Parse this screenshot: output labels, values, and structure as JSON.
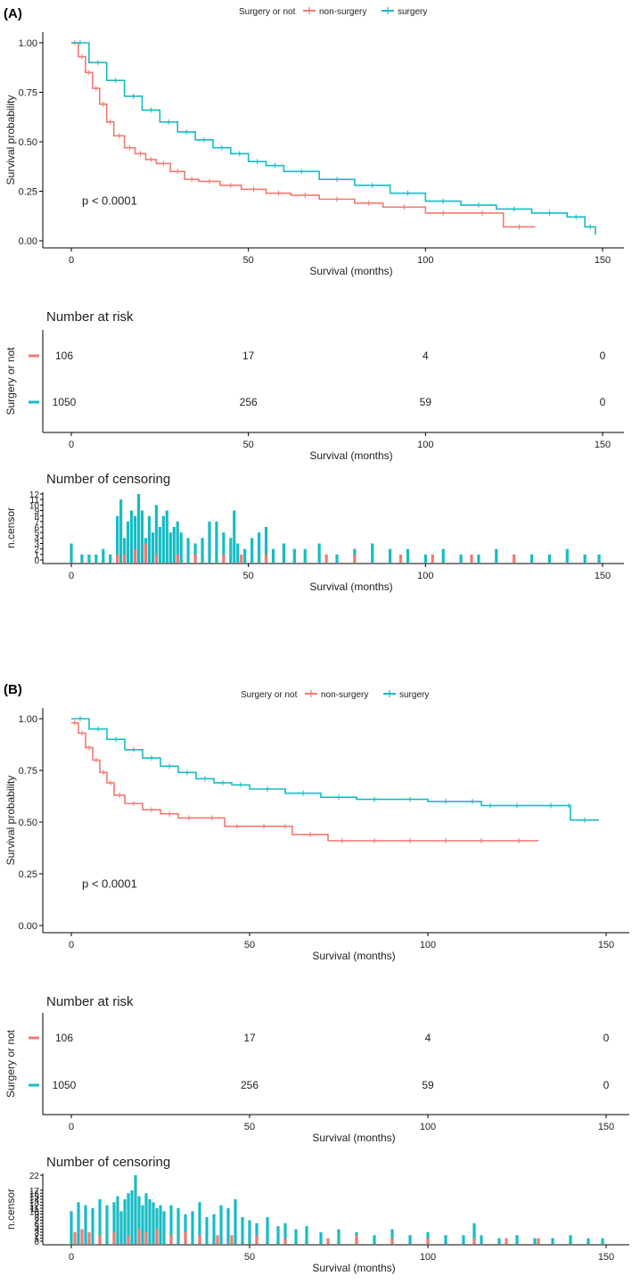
{
  "colors": {
    "non_surgery": "#f07a73",
    "surgery": "#16bcc4",
    "axis": "#000000",
    "text": "#222222"
  },
  "chart_data": [
    {
      "panel": "(A)",
      "legend": {
        "title": "Surgery or not",
        "items": [
          "non-surgery",
          "surgery"
        ],
        "placement": "top"
      },
      "survival": {
        "type": "line",
        "ylabel": "Survival probability",
        "xlabel": "Survival (months)",
        "xlim": [
          0,
          150
        ],
        "ylim": [
          0,
          1
        ],
        "xticks": [
          0,
          50,
          100,
          150
        ],
        "yticks": [
          "0.00",
          "0.25",
          "0.50",
          "0.75",
          "1.00"
        ],
        "pvalue": "p < 0.0001",
        "series": [
          {
            "name": "non-surgery",
            "x": [
              0,
              2,
              4,
              6,
              8,
              10,
              12,
              15,
              18,
              21,
              24,
              28,
              32,
              36,
              42,
              48,
              55,
              62,
              70,
              80,
              88,
              100,
              110,
              122,
              131
            ],
            "y": [
              1.0,
              0.93,
              0.85,
              0.77,
              0.69,
              0.6,
              0.53,
              0.47,
              0.44,
              0.41,
              0.39,
              0.35,
              0.31,
              0.3,
              0.28,
              0.26,
              0.24,
              0.23,
              0.21,
              0.19,
              0.17,
              0.14,
              0.14,
              0.07,
              0.07
            ]
          },
          {
            "name": "surgery",
            "x": [
              0,
              5,
              10,
              15,
              20,
              25,
              30,
              35,
              40,
              45,
              50,
              55,
              60,
              70,
              80,
              90,
              100,
              110,
              120,
              130,
              140,
              145,
              148
            ],
            "y": [
              1.0,
              0.9,
              0.81,
              0.73,
              0.66,
              0.6,
              0.55,
              0.51,
              0.47,
              0.44,
              0.4,
              0.38,
              0.35,
              0.31,
              0.28,
              0.24,
              0.2,
              0.18,
              0.16,
              0.14,
              0.12,
              0.07,
              0.03
            ]
          }
        ]
      },
      "risk_table": {
        "title": "Number at risk",
        "ylabel": "Surgery or not",
        "xlabel": "Survival (months)",
        "times": [
          0,
          50,
          100,
          150
        ],
        "rows": [
          {
            "name": "non-surgery",
            "values": [
              "106",
              "17",
              "4",
              "0"
            ]
          },
          {
            "name": "surgery",
            "values": [
              "1050",
              "256",
              "59",
              "0"
            ]
          }
        ]
      },
      "censoring": {
        "type": "bar",
        "title": "Number of censoring",
        "ylabel": "n.censor",
        "xlabel": "Survival (months)",
        "ylim": [
          0,
          12
        ],
        "yticks": [
          "0",
          "1",
          "2",
          "3",
          "4",
          "5",
          "6",
          "7",
          "8",
          "9",
          "10",
          "11",
          "12"
        ],
        "series": [
          {
            "name": "surgery",
            "x": [
              0,
              3,
              5,
              7,
              9,
              11,
              13,
              14,
              15,
              16,
              17,
              18,
              19,
              20,
              21,
              22,
              23,
              24,
              25,
              26,
              27,
              28,
              29,
              30,
              31,
              33,
              35,
              37,
              39,
              41,
              43,
              45,
              46,
              47,
              49,
              51,
              53,
              55,
              57,
              60,
              63,
              66,
              70,
              75,
              80,
              85,
              90,
              95,
              100,
              105,
              110,
              115,
              120,
              125,
              130,
              135,
              140,
              145,
              149
            ],
            "values": [
              3,
              1,
              1,
              1,
              2,
              1,
              8,
              11,
              4,
              7,
              9,
              8,
              12,
              9,
              4,
              8,
              5,
              10,
              6,
              8,
              9,
              5,
              6,
              7,
              5,
              4,
              3,
              4,
              7,
              7,
              5,
              4,
              9,
              3,
              2,
              4,
              5,
              6,
              2,
              3,
              2,
              2,
              3,
              1,
              2,
              3,
              2,
              2,
              1,
              2,
              1,
              1,
              2,
              1,
              1,
              1,
              2,
              1,
              1
            ]
          },
          {
            "name": "non-surgery",
            "x": [
              13,
              15,
              18,
              21,
              24,
              30,
              35,
              43,
              48,
              55,
              72,
              80,
              93,
              102,
              113,
              125
            ],
            "values": [
              1,
              1,
              2,
              3,
              1,
              1,
              1,
              1,
              1,
              1,
              1,
              1,
              1,
              1,
              1,
              1
            ]
          }
        ]
      }
    },
    {
      "panel": "(B)",
      "legend": {
        "title": "Surgery or not",
        "items": [
          "non-surgery",
          "surgery"
        ],
        "placement": "top"
      },
      "survival": {
        "type": "line",
        "ylabel": "Survival probability",
        "xlabel": "Survival (months)",
        "xlim": [
          0,
          150
        ],
        "ylim": [
          0,
          1
        ],
        "xticks": [
          0,
          50,
          100,
          150
        ],
        "yticks": [
          "0.00",
          "0.25",
          "0.50",
          "0.75",
          "1.00"
        ],
        "pvalue": "p < 0.0001",
        "series": [
          {
            "name": "non-surgery",
            "x": [
              0,
              2,
              4,
              6,
              8,
              10,
              12,
              15,
              20,
              25,
              30,
              36,
              43,
              50,
              58,
              62,
              72,
              80,
              90,
              100,
              110,
              120,
              131
            ],
            "y": [
              0.98,
              0.93,
              0.86,
              0.8,
              0.74,
              0.69,
              0.63,
              0.59,
              0.56,
              0.54,
              0.52,
              0.52,
              0.48,
              0.48,
              0.48,
              0.44,
              0.41,
              0.41,
              0.41,
              0.41,
              0.41,
              0.41,
              0.41
            ]
          },
          {
            "name": "surgery",
            "x": [
              0,
              5,
              10,
              15,
              20,
              25,
              30,
              35,
              40,
              45,
              50,
              60,
              70,
              80,
              90,
              100,
              110,
              115,
              120,
              130,
              139,
              140,
              148
            ],
            "y": [
              1.0,
              0.95,
              0.9,
              0.85,
              0.81,
              0.77,
              0.74,
              0.71,
              0.69,
              0.68,
              0.66,
              0.64,
              0.62,
              0.61,
              0.61,
              0.6,
              0.6,
              0.58,
              0.58,
              0.58,
              0.58,
              0.51,
              0.51
            ]
          }
        ]
      },
      "risk_table": {
        "title": "Number at risk",
        "ylabel": "Surgery or not",
        "xlabel": "Survival (months)",
        "times": [
          0,
          50,
          100,
          150
        ],
        "rows": [
          {
            "name": "non-surgery",
            "values": [
              "106",
              "17",
              "4",
              "0"
            ]
          },
          {
            "name": "surgery",
            "values": [
              "1050",
              "256",
              "59",
              "0"
            ]
          }
        ]
      },
      "censoring": {
        "type": "bar",
        "title": "Number of censoring",
        "ylabel": "n.censor",
        "xlabel": "Survival (months)",
        "ylim": [
          0,
          22
        ],
        "yticks": [
          "0",
          "1",
          "2",
          "3",
          "4",
          "5",
          "6",
          "7",
          "8",
          "9",
          "10",
          "11",
          "12",
          "13",
          "14",
          "15",
          "16",
          "17",
          "22"
        ],
        "series": [
          {
            "name": "surgery",
            "x": [
              0,
              2,
              4,
              6,
              8,
              10,
              12,
              13,
              14,
              15,
              16,
              17,
              18,
              19,
              20,
              21,
              22,
              23,
              24,
              25,
              26,
              28,
              30,
              32,
              34,
              36,
              38,
              40,
              42,
              44,
              46,
              48,
              50,
              52,
              55,
              58,
              60,
              63,
              66,
              70,
              75,
              80,
              85,
              90,
              95,
              100,
              105,
              110,
              113,
              115,
              120,
              125,
              130,
              135,
              140,
              145,
              149
            ],
            "values": [
              10,
              13,
              12,
              11,
              14,
              12,
              13,
              15,
              10,
              14,
              16,
              17,
              22,
              15,
              12,
              16,
              14,
              13,
              11,
              12,
              10,
              12,
              11,
              9,
              10,
              13,
              8,
              9,
              12,
              11,
              14,
              8,
              7,
              6,
              8,
              5,
              6,
              4,
              5,
              3,
              4,
              3,
              2,
              4,
              2,
              3,
              2,
              2,
              6,
              2,
              1,
              2,
              1,
              1,
              2,
              1,
              1
            ]
          },
          {
            "name": "non-surgery",
            "x": [
              1,
              3,
              5,
              8,
              12,
              16,
              19,
              21,
              24,
              28,
              32,
              36,
              41,
              45,
              52,
              60,
              72,
              80,
              90,
              100,
              113,
              122,
              131
            ],
            "values": [
              3,
              4,
              3,
              2,
              3,
              2,
              4,
              3,
              4,
              2,
              3,
              2,
              2,
              2,
              2,
              1,
              1,
              2,
              1,
              1,
              1,
              1,
              1
            ]
          }
        ]
      }
    }
  ]
}
